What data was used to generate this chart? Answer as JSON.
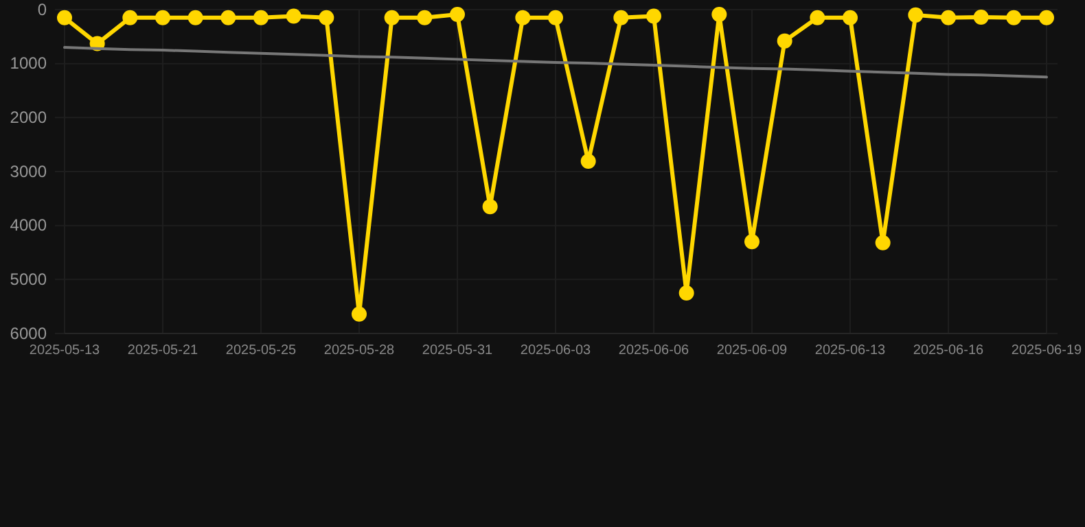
{
  "chart_data": {
    "type": "line",
    "categories": [
      "2025-05-13",
      null,
      null,
      "2025-05-21",
      null,
      null,
      "2025-05-25",
      null,
      null,
      "2025-05-28",
      null,
      null,
      "2025-05-31",
      null,
      null,
      "2025-06-03",
      null,
      null,
      "2025-06-06",
      null,
      null,
      "2025-06-09",
      null,
      null,
      "2025-06-13",
      null,
      null,
      "2025-06-16",
      null,
      null,
      "2025-06-19"
    ],
    "series": [
      {
        "color": "#ffd700",
        "marker": "circle",
        "values": [
          150,
          630,
          150,
          150,
          150,
          150,
          150,
          120,
          150,
          5640,
          150,
          150,
          90,
          3650,
          150,
          150,
          2810,
          150,
          120,
          5250,
          90,
          4300,
          580,
          150,
          150,
          4320,
          100,
          150,
          140,
          150,
          150
        ]
      },
      {
        "color": "#777777",
        "marker": "none",
        "values": [
          700,
          720,
          740,
          750,
          770,
          790,
          810,
          830,
          850,
          870,
          880,
          900,
          920,
          940,
          960,
          980,
          990,
          1010,
          1030,
          1050,
          1070,
          1090,
          1100,
          1120,
          1140,
          1160,
          1180,
          1200,
          1210,
          1230,
          1250
        ]
      }
    ],
    "ylim": [
      6000,
      0
    ],
    "yticks": [
      0,
      1000,
      2000,
      3000,
      4000,
      5000,
      6000
    ],
    "grid": true
  }
}
